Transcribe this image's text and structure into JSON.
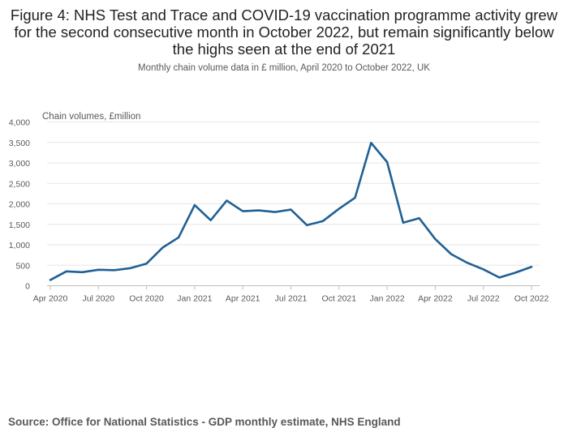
{
  "title": "Figure 4: NHS Test and Trace and COVID-19 vaccination programme activity grew for the second consecutive month in October 2022, but remain significantly below the highs seen at the end of 2021",
  "subtitle": "Monthly chain volume data in £ million, April 2020 to October 2022, UK",
  "source": "Source: Office for National Statistics - GDP monthly estimate, NHS England",
  "chart_data": {
    "type": "line",
    "title": "Figure 4: NHS Test and Trace and COVID-19 vaccination programme activity grew for the second consecutive month in October 2022, but remain significantly below the highs seen at the end of 2021",
    "ylabel": "Chain volumes, £million",
    "xlabel": "",
    "ylim": [
      0,
      4000
    ],
    "yticks": [
      0,
      500,
      1000,
      1500,
      2000,
      2500,
      3000,
      3500,
      4000
    ],
    "ytick_labels": [
      "0",
      "500",
      "1,000",
      "1,500",
      "2,000",
      "2,500",
      "3,000",
      "3,500",
      "4,000"
    ],
    "xtick_labels": [
      "Apr 2020",
      "Jul 2020",
      "Oct 2020",
      "Jan 2021",
      "Apr 2021",
      "Jul 2021",
      "Oct 2021",
      "Jan 2022",
      "Apr 2022",
      "Jul 2022",
      "Oct 2022"
    ],
    "xtick_every": 3,
    "line_color": "#206095",
    "series": [
      {
        "name": "Chain volumes",
        "x": [
          "Apr 2020",
          "May 2020",
          "Jun 2020",
          "Jul 2020",
          "Aug 2020",
          "Sep 2020",
          "Oct 2020",
          "Nov 2020",
          "Dec 2020",
          "Jan 2021",
          "Feb 2021",
          "Mar 2021",
          "Apr 2021",
          "May 2021",
          "Jun 2021",
          "Jul 2021",
          "Aug 2021",
          "Sep 2021",
          "Oct 2021",
          "Nov 2021",
          "Dec 2021",
          "Jan 2022",
          "Feb 2022",
          "Mar 2022",
          "Apr 2022",
          "May 2022",
          "Jun 2022",
          "Jul 2022",
          "Aug 2022",
          "Sep 2022",
          "Oct 2022"
        ],
        "values": [
          140,
          350,
          330,
          390,
          380,
          430,
          540,
          930,
          1180,
          1970,
          1600,
          2080,
          1820,
          1840,
          1800,
          1860,
          1480,
          1580,
          1880,
          2150,
          3490,
          3020,
          1540,
          1650,
          1140,
          770,
          560,
          400,
          200,
          320,
          460
        ]
      }
    ]
  }
}
